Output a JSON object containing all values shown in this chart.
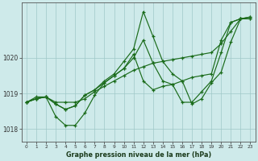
{
  "title": "Graphe pression niveau de la mer (hPa)",
  "background_color": "#ceeaea",
  "grid_color": "#9fc8c8",
  "line_color": "#1a6b1a",
  "x_labels": [
    "0",
    "1",
    "2",
    "3",
    "4",
    "5",
    "6",
    "7",
    "8",
    "9",
    "10",
    "11",
    "12",
    "13",
    "14",
    "15",
    "16",
    "17",
    "18",
    "19",
    "20",
    "21",
    "22",
    "23"
  ],
  "ylim": [
    1017.65,
    1021.55
  ],
  "yticks": [
    1018,
    1019,
    1020
  ],
  "series1": [
    1018.75,
    1018.9,
    1018.9,
    1018.75,
    1018.75,
    1018.75,
    1018.85,
    1019.05,
    1019.2,
    1019.35,
    1019.5,
    1019.65,
    1019.75,
    1019.85,
    1019.9,
    1019.95,
    1020.0,
    1020.05,
    1020.1,
    1020.15,
    1020.4,
    1020.75,
    1021.1,
    1021.15
  ],
  "series2": [
    1018.75,
    1018.85,
    1018.9,
    1018.35,
    1018.1,
    1018.1,
    1018.45,
    1018.95,
    1019.3,
    1019.5,
    1019.7,
    1020.1,
    1019.35,
    1019.1,
    1019.2,
    1019.25,
    1019.35,
    1019.45,
    1019.5,
    1019.55,
    1020.5,
    1021.0,
    1021.1,
    1021.1
  ],
  "series3": [
    1018.75,
    1018.85,
    1018.9,
    1018.7,
    1018.55,
    1018.65,
    1018.95,
    1019.1,
    1019.3,
    1019.5,
    1019.7,
    1020.0,
    1020.5,
    1019.85,
    1019.35,
    1019.25,
    1018.75,
    1018.75,
    1019.05,
    1019.35,
    1020.15,
    1021.0,
    1021.1,
    1021.1
  ],
  "series4": [
    1018.75,
    1018.85,
    1018.9,
    1018.7,
    1018.55,
    1018.65,
    1018.95,
    1019.1,
    1019.35,
    1019.55,
    1019.9,
    1020.25,
    1021.3,
    1020.6,
    1019.9,
    1019.55,
    1019.35,
    1018.7,
    1018.85,
    1019.3,
    1019.6,
    1020.45,
    1021.1,
    1021.15
  ]
}
